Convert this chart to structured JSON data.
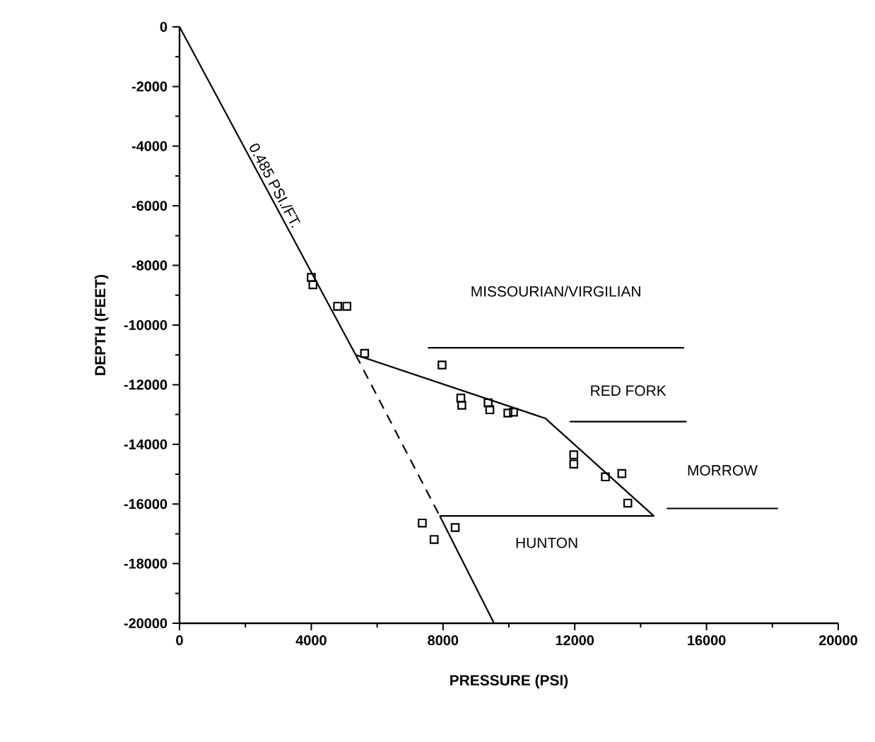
{
  "chart_data": {
    "type": "scatter",
    "xlabel": "PRESSURE (PSI)",
    "ylabel": "DEPTH (FEET)",
    "xlim": [
      0,
      20000
    ],
    "ylim": [
      -20000,
      0
    ],
    "xticks": [
      0,
      4000,
      8000,
      12000,
      16000,
      20000
    ],
    "yticks": [
      -20000,
      -18000,
      -16000,
      -14000,
      -12000,
      -10000,
      -8000,
      -6000,
      -4000,
      -2000,
      0
    ],
    "series": [
      {
        "marker": "square",
        "color": "#000000",
        "x": [
          4000,
          4050,
          4800,
          5080,
          5620,
          7970,
          8540,
          8570,
          9370,
          9420,
          9970,
          10140,
          11970,
          11970,
          12930,
          13430,
          13610,
          7370,
          7730,
          8370
        ],
        "values": [
          -8400,
          -8650,
          -9370,
          -9370,
          -10950,
          -11340,
          -12450,
          -12690,
          -12610,
          -12840,
          -12950,
          -12920,
          -14350,
          -14660,
          -15090,
          -14980,
          -15970,
          -16640,
          -17190,
          -16790
        ]
      },
      {
        "type": "line",
        "line_style": "solid",
        "color": "#000000",
        "x": [
          0,
          5350
        ],
        "values": [
          0,
          -11000
        ]
      },
      {
        "type": "line",
        "line_style": "dashed",
        "color": "#000000",
        "x": [
          5350,
          7900
        ],
        "values": [
          -11000,
          -16400
        ]
      },
      {
        "type": "line",
        "line_style": "solid",
        "color": "#000000",
        "x": [
          7900,
          9550
        ],
        "values": [
          -16400,
          -20000
        ]
      },
      {
        "type": "line",
        "line_style": "solid",
        "color": "#000000",
        "x": [
          5350,
          11110,
          14400,
          7900
        ],
        "values": [
          -11000,
          -13130,
          -16400,
          -16400
        ]
      },
      {
        "type": "line",
        "line_style": "solid",
        "color": "#000000",
        "x": [
          7540,
          15320
        ],
        "values": [
          -10760,
          -10760
        ]
      },
      {
        "type": "line",
        "line_style": "solid",
        "color": "#000000",
        "x": [
          11850,
          15390
        ],
        "values": [
          -13240,
          -13240
        ]
      },
      {
        "type": "line",
        "line_style": "solid",
        "color": "#000000",
        "x": [
          14790,
          18170
        ],
        "values": [
          -16150,
          -16150
        ]
      }
    ],
    "annotations": [
      "0.485 PSI./FT.",
      "MISSOURIAN/VIRGILIAN",
      "RED FORK",
      "MORROW",
      "HUNTON"
    ]
  }
}
